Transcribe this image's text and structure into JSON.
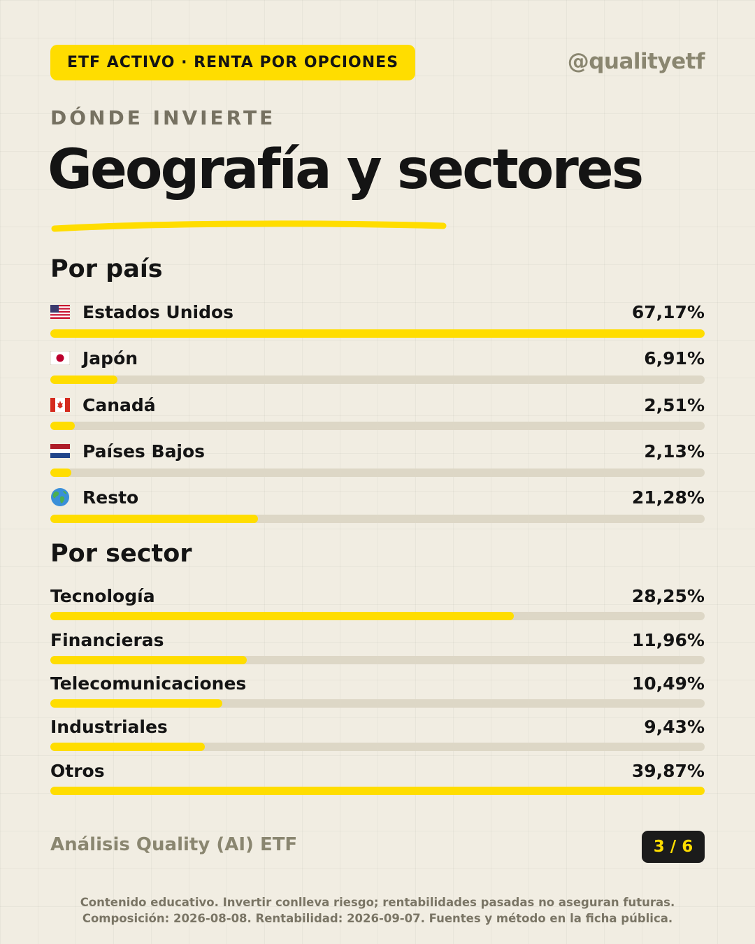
{
  "header": {
    "badge": "ETF ACTIVO · RENTA POR OPCIONES",
    "handle": "@qualityetf",
    "kicker": "DÓNDE INVIERTE",
    "title": "Geografía y sectores"
  },
  "colors": {
    "background": "#f1ede2",
    "accent": "#ffdd00",
    "track": "#ddd7c6",
    "text": "#141414",
    "muted": "#8a8670"
  },
  "chart_data": [
    {
      "type": "bar",
      "title": "Por país",
      "categories": [
        "Estados Unidos",
        "Japón",
        "Canadá",
        "Países Bajos",
        "Resto"
      ],
      "value_labels": [
        "67,17%",
        "6,91%",
        "2,51%",
        "2,13%",
        "21,28%"
      ],
      "values": [
        67.17,
        6.91,
        2.51,
        2.13,
        21.28
      ],
      "icons": [
        "us-flag-icon",
        "japan-flag-icon",
        "canada-flag-icon",
        "netherlands-flag-icon",
        "globe-icon"
      ],
      "xlim": [
        0,
        67.17
      ],
      "orientation": "horizontal"
    },
    {
      "type": "bar",
      "title": "Por sector",
      "categories": [
        "Tecnología",
        "Financieras",
        "Telecomunicaciones",
        "Industriales",
        "Otros"
      ],
      "value_labels": [
        "28,25%",
        "11,96%",
        "10,49%",
        "9,43%",
        "39,87%"
      ],
      "values": [
        28.25,
        11.96,
        10.49,
        9.43,
        39.87
      ],
      "xlim": [
        0,
        39.87
      ],
      "orientation": "horizontal"
    }
  ],
  "footer": {
    "brand": "Análisis Quality (AI) ETF",
    "page": "3 / 6",
    "disclaimer_line1": "Contenido educativo. Invertir conlleva riesgo; rentabilidades pasadas no aseguran futuras.",
    "disclaimer_line2": "Composición: 2026-08-08. Rentabilidad: 2026-09-07. Fuentes y método en la ficha pública."
  }
}
